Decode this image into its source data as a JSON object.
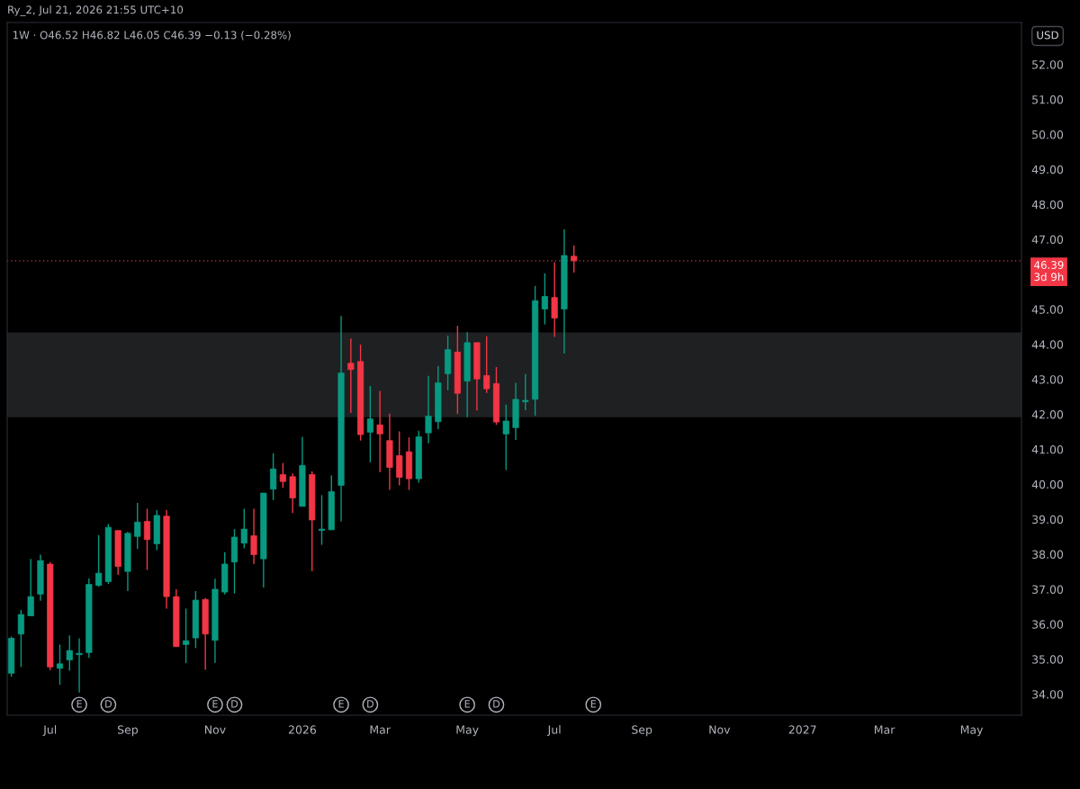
{
  "chart_data": {
    "type": "candlestick",
    "title": "1W · O46.52 H46.82 L46.05 C46.39 −0.13 (−0.28%)",
    "annotations": [
      "Ry_2, Jul 21, 2026 21:55 UTC+10",
      "USD",
      {
        "text": "E",
        "x": "2025-07-28",
        "y": 33.7
      },
      {
        "text": "D",
        "x": "2025-08-18",
        "y": 33.7
      },
      {
        "text": "E",
        "x": "2025-11-03",
        "y": 33.7
      },
      {
        "text": "D",
        "x": "2025-11-17",
        "y": 33.7
      },
      {
        "text": "E",
        "x": "2026-02-02",
        "y": 33.7
      },
      {
        "text": "D",
        "x": "2026-02-23",
        "y": 33.7
      },
      {
        "text": "E",
        "x": "2026-05-04",
        "y": 33.7
      },
      {
        "text": "D",
        "x": "2026-05-25",
        "y": 33.7
      },
      {
        "text": "E",
        "x": "2026-08-03",
        "y": 33.7
      }
    ],
    "x": [
      "2025-06-09",
      "2025-06-16",
      "2025-06-23",
      "2025-06-30",
      "2025-07-07",
      "2025-07-14",
      "2025-07-21",
      "2025-07-28",
      "2025-08-04",
      "2025-08-11",
      "2025-08-18",
      "2025-08-25",
      "2025-09-01",
      "2025-09-08",
      "2025-09-15",
      "2025-09-22",
      "2025-09-29",
      "2025-10-06",
      "2025-10-13",
      "2025-10-20",
      "2025-10-27",
      "2025-11-03",
      "2025-11-10",
      "2025-11-17",
      "2025-11-24",
      "2025-12-01",
      "2025-12-08",
      "2025-12-15",
      "2025-12-22",
      "2025-12-29",
      "2026-01-05",
      "2026-01-12",
      "2026-01-19",
      "2026-01-26",
      "2026-02-02",
      "2026-02-09",
      "2026-02-16",
      "2026-02-23",
      "2026-03-02",
      "2026-03-09",
      "2026-03-16",
      "2026-03-23",
      "2026-03-30",
      "2026-04-06",
      "2026-04-13",
      "2026-04-20",
      "2026-04-27",
      "2026-05-04",
      "2026-05-11",
      "2026-05-18",
      "2026-05-25",
      "2026-06-01",
      "2026-06-08",
      "2026-06-15",
      "2026-06-22",
      "2026-06-29",
      "2026-07-06",
      "2026-07-13",
      "2026-07-20"
    ],
    "ohlc": [
      [
        34.6,
        35.65,
        34.5,
        35.6
      ],
      [
        35.72,
        36.41,
        34.78,
        36.28
      ],
      [
        36.24,
        37.87,
        36.24,
        36.79
      ],
      [
        36.86,
        37.99,
        36.67,
        37.82
      ],
      [
        37.72,
        37.78,
        34.69,
        34.78
      ],
      [
        34.74,
        35.42,
        34.27,
        34.87
      ],
      [
        34.98,
        35.68,
        34.67,
        35.25
      ],
      [
        35.13,
        35.6,
        34.05,
        35.17
      ],
      [
        35.19,
        37.31,
        35.04,
        37.14
      ],
      [
        37.11,
        38.55,
        37.07,
        37.46
      ],
      [
        37.22,
        38.87,
        37.15,
        38.77
      ],
      [
        38.68,
        38.68,
        37.41,
        37.65
      ],
      [
        37.51,
        38.64,
        36.95,
        38.6
      ],
      [
        38.51,
        39.47,
        38.15,
        38.92
      ],
      [
        38.94,
        39.3,
        37.55,
        38.42
      ],
      [
        38.3,
        39.26,
        38.12,
        39.11
      ],
      [
        39.09,
        39.26,
        36.45,
        36.79
      ],
      [
        36.79,
        37.0,
        35.36,
        35.36
      ],
      [
        35.42,
        36.45,
        34.89,
        35.53
      ],
      [
        35.61,
        36.95,
        35.32,
        36.69
      ],
      [
        36.71,
        36.75,
        34.7,
        35.72
      ],
      [
        35.54,
        37.3,
        34.9,
        37.0
      ],
      [
        36.92,
        38.06,
        36.85,
        37.72
      ],
      [
        37.78,
        38.72,
        36.88,
        38.49
      ],
      [
        38.32,
        39.3,
        38.17,
        38.72
      ],
      [
        38.53,
        39.3,
        37.72,
        37.99
      ],
      [
        37.87,
        39.75,
        37.05,
        39.75
      ],
      [
        39.86,
        40.89,
        39.55,
        40.44
      ],
      [
        40.28,
        40.61,
        39.9,
        40.08
      ],
      [
        40.22,
        40.31,
        39.18,
        39.61
      ],
      [
        39.37,
        41.36,
        39.37,
        40.54
      ],
      [
        40.28,
        40.37,
        37.52,
        38.98
      ],
      [
        38.68,
        39.69,
        38.27,
        38.72
      ],
      [
        38.7,
        40.25,
        38.7,
        39.79
      ],
      [
        39.97,
        44.81,
        38.94,
        43.18
      ],
      [
        43.46,
        44.17,
        42.04,
        43.28
      ],
      [
        43.51,
        43.99,
        41.25,
        41.42
      ],
      [
        41.49,
        42.81,
        40.63,
        41.87
      ],
      [
        41.7,
        42.67,
        40.35,
        41.44
      ],
      [
        41.25,
        42.02,
        39.84,
        40.48
      ],
      [
        40.82,
        41.51,
        39.97,
        40.2
      ],
      [
        40.93,
        41.34,
        39.84,
        40.16
      ],
      [
        40.16,
        41.53,
        40.05,
        41.36
      ],
      [
        41.47,
        43.1,
        41.17,
        41.95
      ],
      [
        41.79,
        43.38,
        41.58,
        42.9
      ],
      [
        43.16,
        44.25,
        42.69,
        43.85
      ],
      [
        43.78,
        44.53,
        42.01,
        42.6
      ],
      [
        42.95,
        44.35,
        41.92,
        44.05
      ],
      [
        44.05,
        44.05,
        42.11,
        43.01
      ],
      [
        43.11,
        44.23,
        42.61,
        42.73
      ],
      [
        42.88,
        43.35,
        41.7,
        41.78
      ],
      [
        41.44,
        42.28,
        40.41,
        41.81
      ],
      [
        41.62,
        42.9,
        41.27,
        42.43
      ],
      [
        42.36,
        43.15,
        42.12,
        42.4
      ],
      [
        42.43,
        45.67,
        41.96,
        45.25
      ],
      [
        45.01,
        46.03,
        44.57,
        45.37
      ],
      [
        45.34,
        46.35,
        44.21,
        44.75
      ],
      [
        45.01,
        47.29,
        43.74,
        46.54
      ],
      [
        46.52,
        46.82,
        46.05,
        46.39
      ]
    ],
    "colors": [
      "#089981",
      "#089981",
      "#089981",
      "#089981",
      "#f23645",
      "#089981",
      "#089981",
      "#089981",
      "#089981",
      "#089981",
      "#089981",
      "#f23645",
      "#089981",
      "#089981",
      "#f23645",
      "#089981",
      "#f23645",
      "#f23645",
      "#089981",
      "#089981",
      "#f23645",
      "#089981",
      "#089981",
      "#089981",
      "#089981",
      "#f23645",
      "#089981",
      "#089981",
      "#f23645",
      "#f23645",
      "#089981",
      "#f23645",
      "#089981",
      "#089981",
      "#089981",
      "#f23645",
      "#f23645",
      "#089981",
      "#f23645",
      "#f23645",
      "#f23645",
      "#f23645",
      "#089981",
      "#089981",
      "#089981",
      "#089981",
      "#f23645",
      "#089981",
      "#f23645",
      "#f23645",
      "#f23645",
      "#089981",
      "#089981",
      "#089981",
      "#089981",
      "#089981",
      "#f23645",
      "#089981",
      "#f23645"
    ],
    "xlim": [
      "2025-06-06",
      "2027-06-08"
    ],
    "xticks": [
      {
        "value": "2025-07-07",
        "label": "Jul"
      },
      {
        "value": "2025-09-01",
        "label": "Sep"
      },
      {
        "value": "2025-11-03",
        "label": "Nov"
      },
      {
        "value": "2026-01-05",
        "label": "2026"
      },
      {
        "value": "2026-03-02",
        "label": "Mar"
      },
      {
        "value": "2026-05-04",
        "label": "May"
      },
      {
        "value": "2026-07-06",
        "label": "Jul"
      },
      {
        "value": "2026-09-07",
        "label": "Sep"
      },
      {
        "value": "2026-11-02",
        "label": "Nov"
      },
      {
        "value": "2027-01-01",
        "label": "2027"
      },
      {
        "value": "2027-03-01",
        "label": "Mar"
      },
      {
        "value": "2027-05-03",
        "label": "May"
      }
    ],
    "ylim": [
      33.4,
      53.2
    ],
    "yticks": [
      {
        "value": 34,
        "label": "34.00"
      },
      {
        "value": 35,
        "label": "35.00"
      },
      {
        "value": 36,
        "label": "36.00"
      },
      {
        "value": 37,
        "label": "37.00"
      },
      {
        "value": 38,
        "label": "38.00"
      },
      {
        "value": 39,
        "label": "39.00"
      },
      {
        "value": 40,
        "label": "40.00"
      },
      {
        "value": 41,
        "label": "41.00"
      },
      {
        "value": 42,
        "label": "42.00"
      },
      {
        "value": 43,
        "label": "43.00"
      },
      {
        "value": 44,
        "label": "44.00"
      },
      {
        "value": 45,
        "label": "45.00"
      },
      {
        "value": 47,
        "label": "47.00"
      },
      {
        "value": 48,
        "label": "48.00"
      },
      {
        "value": 49,
        "label": "49.00"
      },
      {
        "value": 50,
        "label": "50.00"
      },
      {
        "value": 51,
        "label": "51.00"
      },
      {
        "value": 52,
        "label": "52.00"
      }
    ],
    "ref_lines": [
      {
        "axis": "y",
        "value": 46.39,
        "label": "46.39\n3d 9h",
        "color": "#f23645",
        "line_style": "dotted"
      }
    ],
    "bands": [
      {
        "axis": "y",
        "from": 41.92,
        "to": 44.34,
        "color": "#1e2022"
      }
    ],
    "grid": false
  }
}
